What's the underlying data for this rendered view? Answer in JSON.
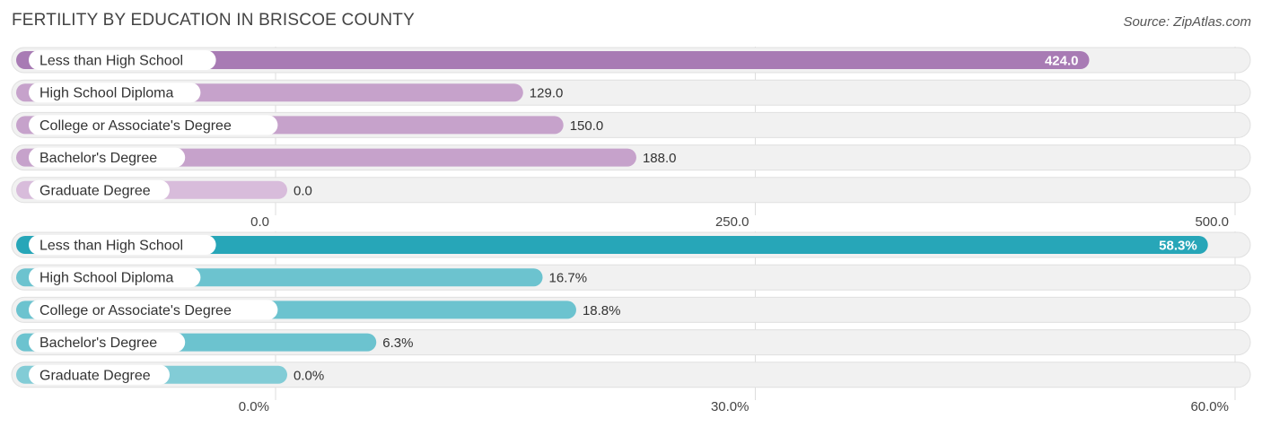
{
  "header": {
    "title": "FERTILITY BY EDUCATION IN BRISCOE COUNTY",
    "source": "Source: ZipAtlas.com"
  },
  "chart_data": [
    {
      "type": "bar",
      "orientation": "horizontal",
      "categories": [
        "Less than High School",
        "High School Diploma",
        "College or Associate's Degree",
        "Bachelor's Degree",
        "Graduate Degree"
      ],
      "values": [
        424.0,
        129.0,
        150.0,
        188.0,
        0.0
      ],
      "value_labels": [
        "424.0",
        "129.0",
        "150.0",
        "188.0",
        "0.0"
      ],
      "xlim": [
        0,
        500
      ],
      "ticks": [
        0,
        250,
        500
      ],
      "tick_labels": [
        "0.0",
        "250.0",
        "500.0"
      ],
      "colors": [
        "#a87bb4",
        "#c6a2cb",
        "#c6a2cb",
        "#c6a2cb",
        "#d8bcdb"
      ],
      "grid": true
    },
    {
      "type": "bar",
      "orientation": "horizontal",
      "categories": [
        "Less than High School",
        "High School Diploma",
        "College or Associate's Degree",
        "Bachelor's Degree",
        "Graduate Degree"
      ],
      "values": [
        58.3,
        16.7,
        18.8,
        6.3,
        0.0
      ],
      "value_labels": [
        "58.3%",
        "16.7%",
        "18.8%",
        "6.3%",
        "0.0%"
      ],
      "xlim": [
        0,
        60
      ],
      "ticks": [
        0,
        30,
        60
      ],
      "tick_labels": [
        "0.0%",
        "30.0%",
        "60.0%"
      ],
      "colors": [
        "#27a6b8",
        "#6cc3cf",
        "#6cc3cf",
        "#6cc3cf",
        "#82ccd6"
      ],
      "grid": true
    }
  ]
}
